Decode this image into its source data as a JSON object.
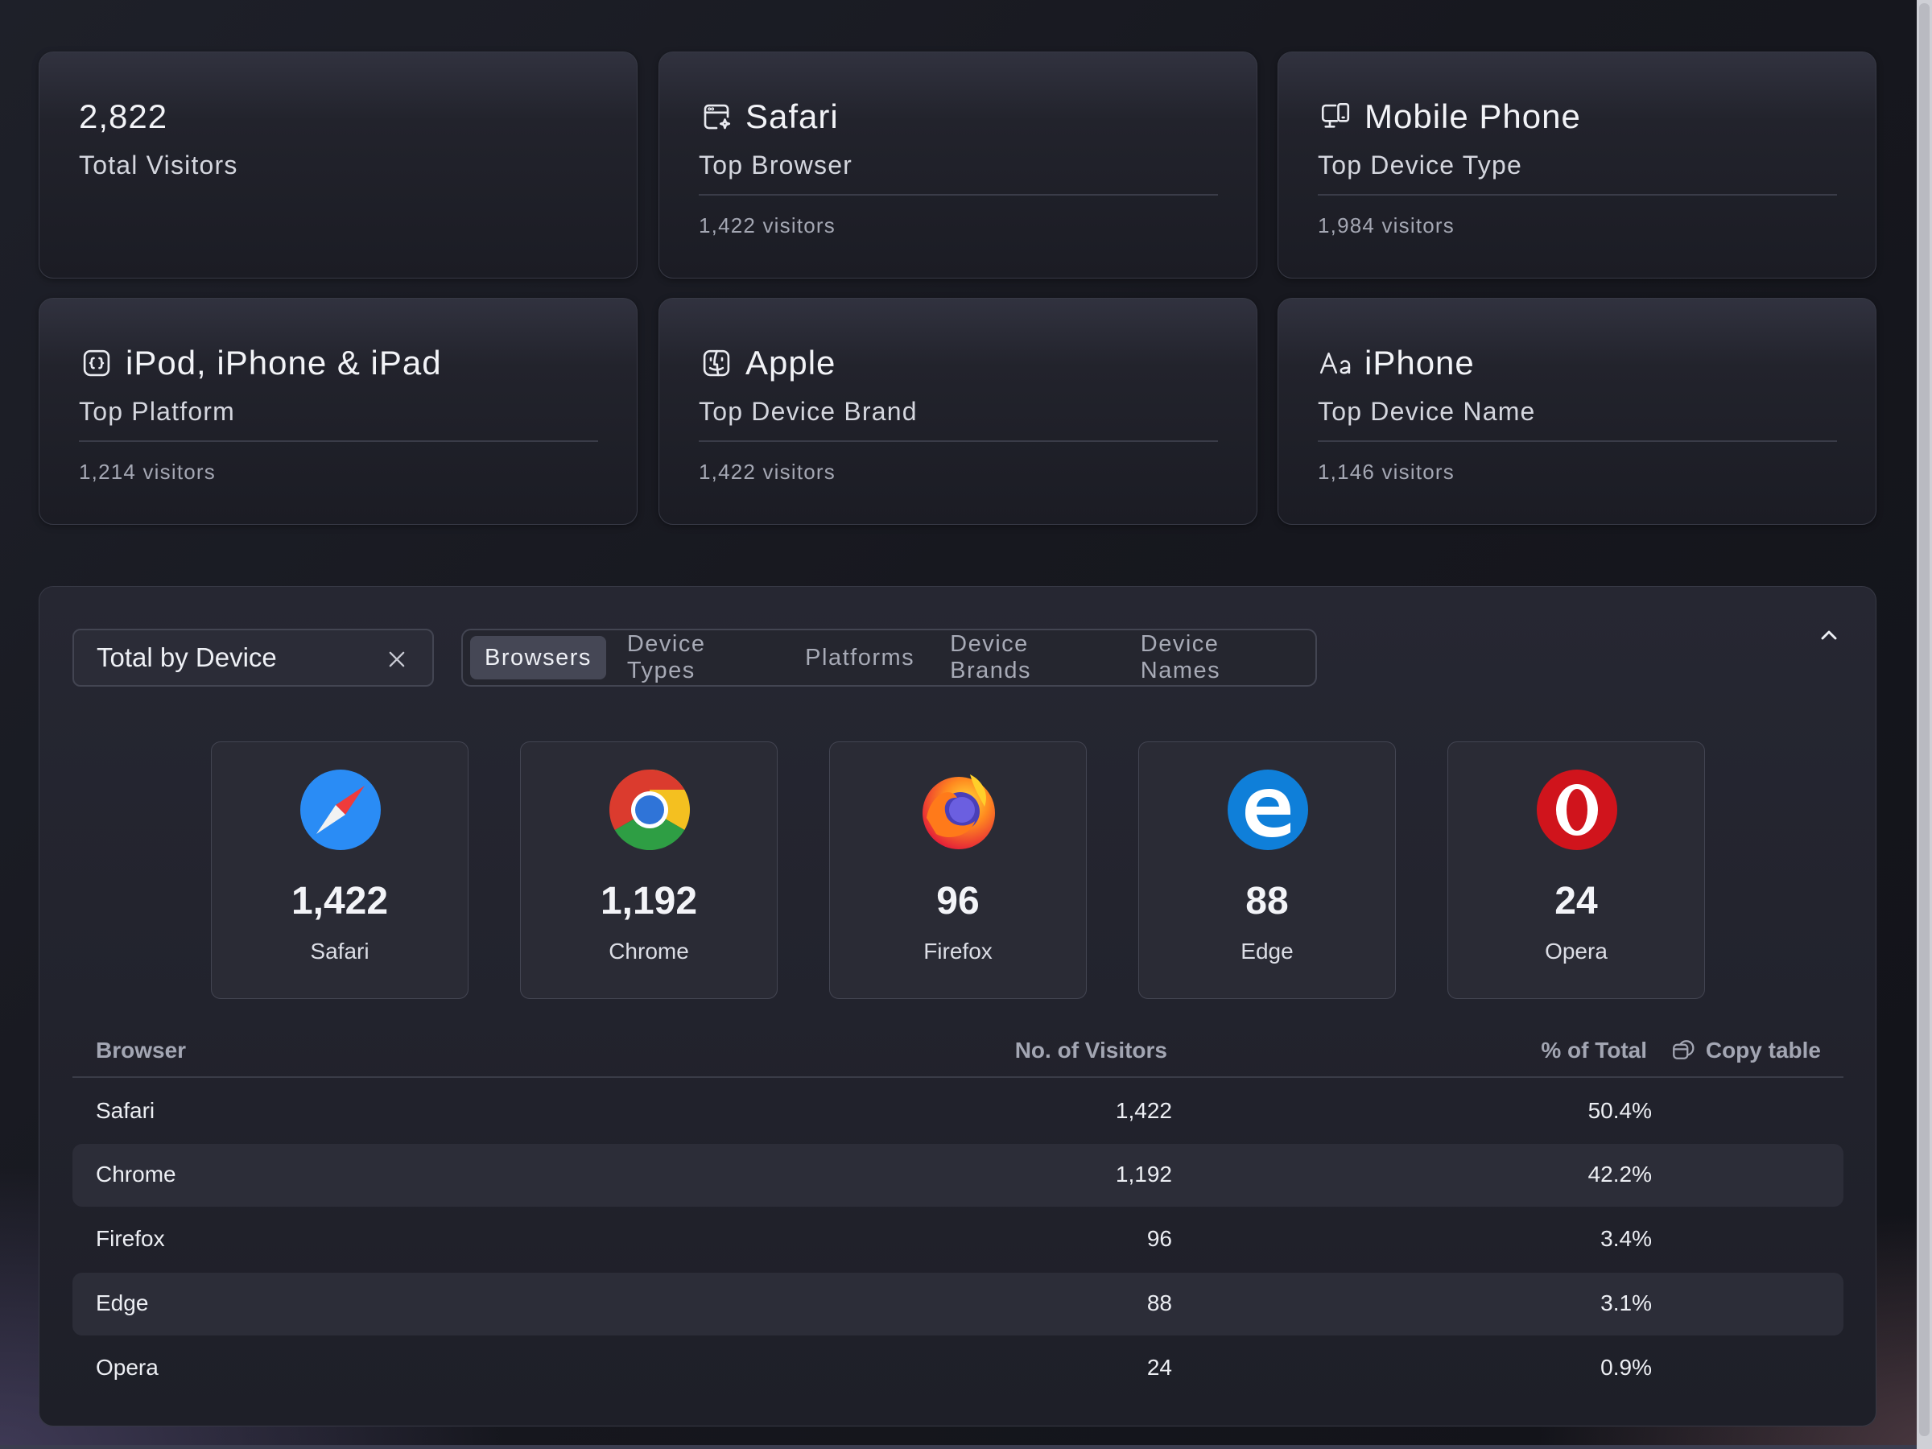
{
  "stats": [
    {
      "value": "2,822",
      "label": "Total Visitors",
      "visitors": "",
      "icon": ""
    },
    {
      "value": "Safari",
      "label": "Top Browser",
      "visitors": "1,422 visitors",
      "icon": "browser-sparkle-icon"
    },
    {
      "value": "Mobile Phone",
      "label": "Top Device Type",
      "visitors": "1,984 visitors",
      "icon": "devices-icon"
    },
    {
      "value": "iPod, iPhone & iPad",
      "label": "Top Platform",
      "visitors": "1,214 visitors",
      "icon": "code-square-icon"
    },
    {
      "value": "Apple",
      "label": "Top Device Brand",
      "visitors": "1,422 visitors",
      "icon": "finder-face-icon"
    },
    {
      "value": "iPhone",
      "label": "Top Device Name",
      "visitors": "1,146 visitors",
      "icon": "text-aa-icon"
    }
  ],
  "panel": {
    "filter_label": "Total by Device",
    "tabs": [
      "Browsers",
      "Device Types",
      "Platforms",
      "Device Brands",
      "Device Names"
    ],
    "active_tab": "Browsers"
  },
  "browsers": [
    {
      "name": "Safari",
      "count": "1,422",
      "icon": "safari-logo-icon",
      "color": "#2a8cf5"
    },
    {
      "name": "Chrome",
      "count": "1,192",
      "icon": "chrome-logo-icon",
      "color": "#db3b2e"
    },
    {
      "name": "Firefox",
      "count": "96",
      "icon": "firefox-logo-icon",
      "color": "#f2762a"
    },
    {
      "name": "Edge",
      "count": "88",
      "icon": "edge-logo-icon",
      "color": "#0f7fd9"
    },
    {
      "name": "Opera",
      "count": "24",
      "icon": "opera-logo-icon",
      "color": "#d0141c"
    }
  ],
  "table": {
    "headers": {
      "browser": "Browser",
      "visitors": "No. of Visitors",
      "percent": "% of Total"
    },
    "copy_label": "Copy table",
    "rows": [
      {
        "browser": "Safari",
        "visitors": "1,422",
        "percent": "50.4%"
      },
      {
        "browser": "Chrome",
        "visitors": "1,192",
        "percent": "42.2%"
      },
      {
        "browser": "Firefox",
        "visitors": "96",
        "percent": "3.4%"
      },
      {
        "browser": "Edge",
        "visitors": "88",
        "percent": "3.1%"
      },
      {
        "browser": "Opera",
        "visitors": "24",
        "percent": "0.9%"
      }
    ]
  }
}
